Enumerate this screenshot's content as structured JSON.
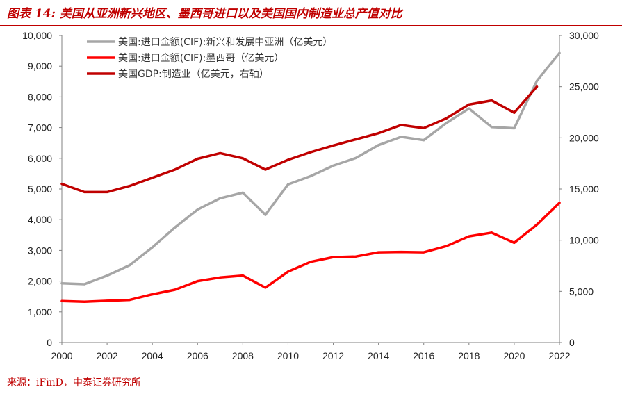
{
  "header": {
    "title": "图表 14:   美国从亚洲新兴地区、墨西哥进口以及美国国内制造业总产值对比"
  },
  "footer": {
    "source": "来源：iFinD，中泰证券研究所"
  },
  "chart_data": {
    "type": "line",
    "xlim": [
      2000,
      2022
    ],
    "x_ticks": [
      "2000",
      "2002",
      "2004",
      "2006",
      "2008",
      "2010",
      "2012",
      "2014",
      "2016",
      "2018",
      "2020",
      "2022"
    ],
    "ylim_left": [
      0,
      10000
    ],
    "y_ticks_left": [
      "0",
      "1,000",
      "2,000",
      "3,000",
      "4,000",
      "5,000",
      "6,000",
      "7,000",
      "8,000",
      "9,000",
      "10,000"
    ],
    "ylim_right": [
      0,
      30000
    ],
    "y_ticks_right": [
      "0",
      "5,000",
      "10,000",
      "15,000",
      "20,000",
      "25,000",
      "30,000"
    ],
    "legend_position": "top-left",
    "grid": false,
    "series": [
      {
        "name": "美国:进口金额(CIF):新兴和发展中亚洲（亿美元）",
        "axis": "left",
        "color": "#a6a6a6",
        "x": [
          2000,
          2001,
          2002,
          2003,
          2004,
          2005,
          2006,
          2007,
          2008,
          2009,
          2010,
          2011,
          2012,
          2013,
          2014,
          2015,
          2016,
          2017,
          2018,
          2019,
          2020,
          2021,
          2022
        ],
        "values": [
          1930,
          1900,
          2180,
          2520,
          3100,
          3750,
          4330,
          4700,
          4880,
          4160,
          5150,
          5420,
          5760,
          6010,
          6430,
          6700,
          6590,
          7150,
          7620,
          7020,
          6980,
          8520,
          9430
        ]
      },
      {
        "name": "美国:进口金额(CIF):墨西哥（亿美元）",
        "axis": "left",
        "color": "#ff0000",
        "x": [
          2000,
          2001,
          2002,
          2003,
          2004,
          2005,
          2006,
          2007,
          2008,
          2009,
          2010,
          2011,
          2012,
          2013,
          2014,
          2015,
          2016,
          2017,
          2018,
          2019,
          2020,
          2021,
          2022
        ],
        "values": [
          1350,
          1330,
          1360,
          1390,
          1570,
          1720,
          2000,
          2120,
          2180,
          1790,
          2310,
          2630,
          2780,
          2800,
          2940,
          2950,
          2940,
          3140,
          3460,
          3580,
          3250,
          3840,
          4550
        ]
      },
      {
        "name": "美国GDP:制造业（亿美元，右轴）",
        "axis": "right",
        "color": "#c00000",
        "x": [
          2000,
          2001,
          2002,
          2003,
          2004,
          2005,
          2006,
          2007,
          2008,
          2009,
          2010,
          2011,
          2012,
          2013,
          2014,
          2015,
          2016,
          2017,
          2018,
          2019,
          2020,
          2021
        ],
        "values": [
          15500,
          14700,
          14700,
          15300,
          16100,
          16900,
          17950,
          18500,
          18000,
          16900,
          17850,
          18600,
          19250,
          19850,
          20450,
          21250,
          20950,
          21900,
          23250,
          23650,
          22450,
          25000
        ]
      }
    ]
  }
}
